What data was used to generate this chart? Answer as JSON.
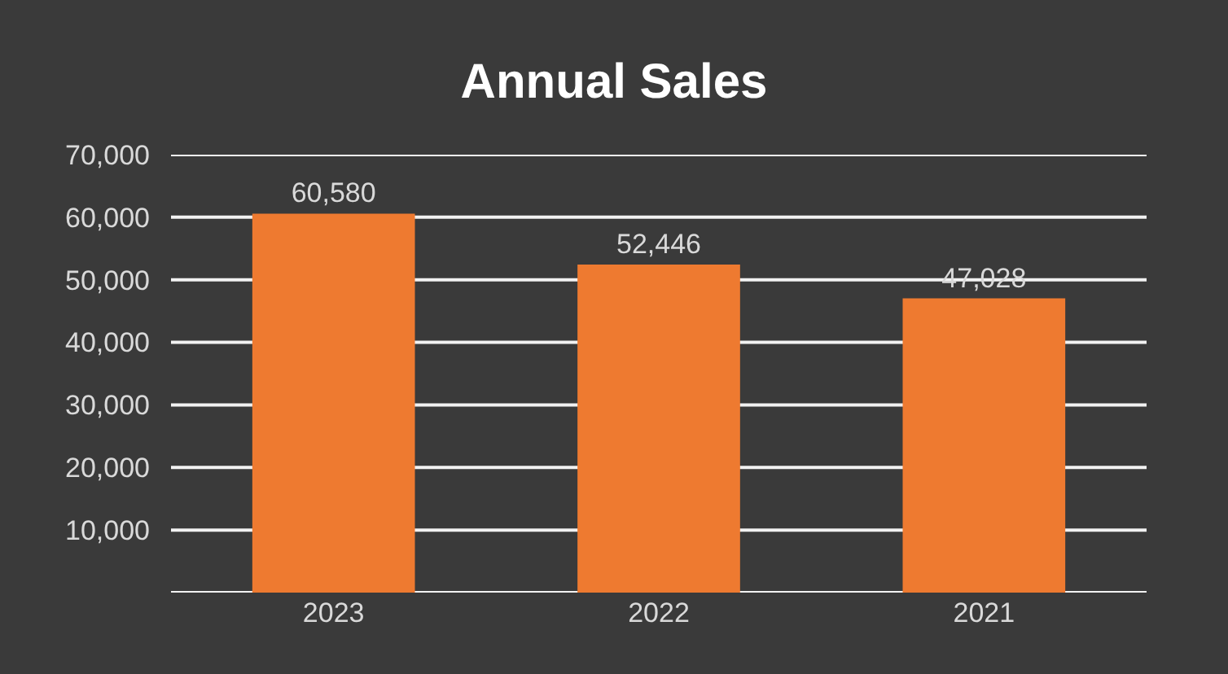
{
  "chart_data": {
    "type": "bar",
    "title": "Annual Sales",
    "categories": [
      "2023",
      "2022",
      "2021"
    ],
    "values": [
      60580,
      52446,
      47028
    ],
    "color": "#ee7a30",
    "ylim": [
      0,
      70000
    ],
    "yticks": [
      {
        "value": 0,
        "label": null
      },
      {
        "value": 10000,
        "label": "10,000"
      },
      {
        "value": 20000,
        "label": "20,000"
      },
      {
        "value": 30000,
        "label": "30,000"
      },
      {
        "value": 40000,
        "label": "40,000"
      },
      {
        "value": 50000,
        "label": "50,000"
      },
      {
        "value": 60000,
        "label": "60,000"
      },
      {
        "value": 70000,
        "label": "70,000"
      }
    ],
    "grid": "y",
    "value_labels": [
      "60,580",
      "52,446",
      "47,028"
    ]
  }
}
